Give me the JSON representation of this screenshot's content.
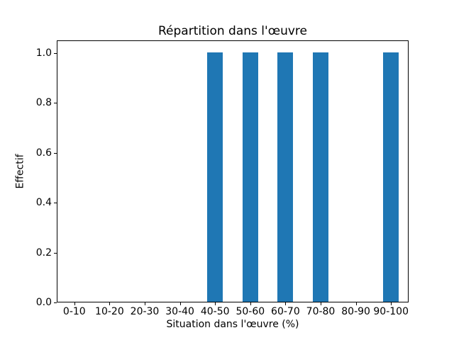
{
  "chart_data": {
    "type": "bar",
    "title": "Répartition dans l'œuvre",
    "xlabel": "Situation dans l'œuvre (%)",
    "ylabel": "Effectif",
    "categories": [
      "0-10",
      "10-20",
      "20-30",
      "30-40",
      "40-50",
      "50-60",
      "60-70",
      "70-80",
      "80-90",
      "90-100"
    ],
    "values": [
      0,
      0,
      0,
      0,
      1,
      1,
      1,
      1,
      0,
      1
    ],
    "yticks": [
      0.0,
      0.2,
      0.4,
      0.6,
      0.8,
      1.0
    ],
    "ytick_labels": [
      "0.0",
      "0.2",
      "0.4",
      "0.6",
      "0.8",
      "1.0"
    ],
    "ylim": [
      0,
      1.05
    ],
    "bar_color": "#1f77b4",
    "spine_color": "#000000",
    "grid": false,
    "legend": null
  }
}
